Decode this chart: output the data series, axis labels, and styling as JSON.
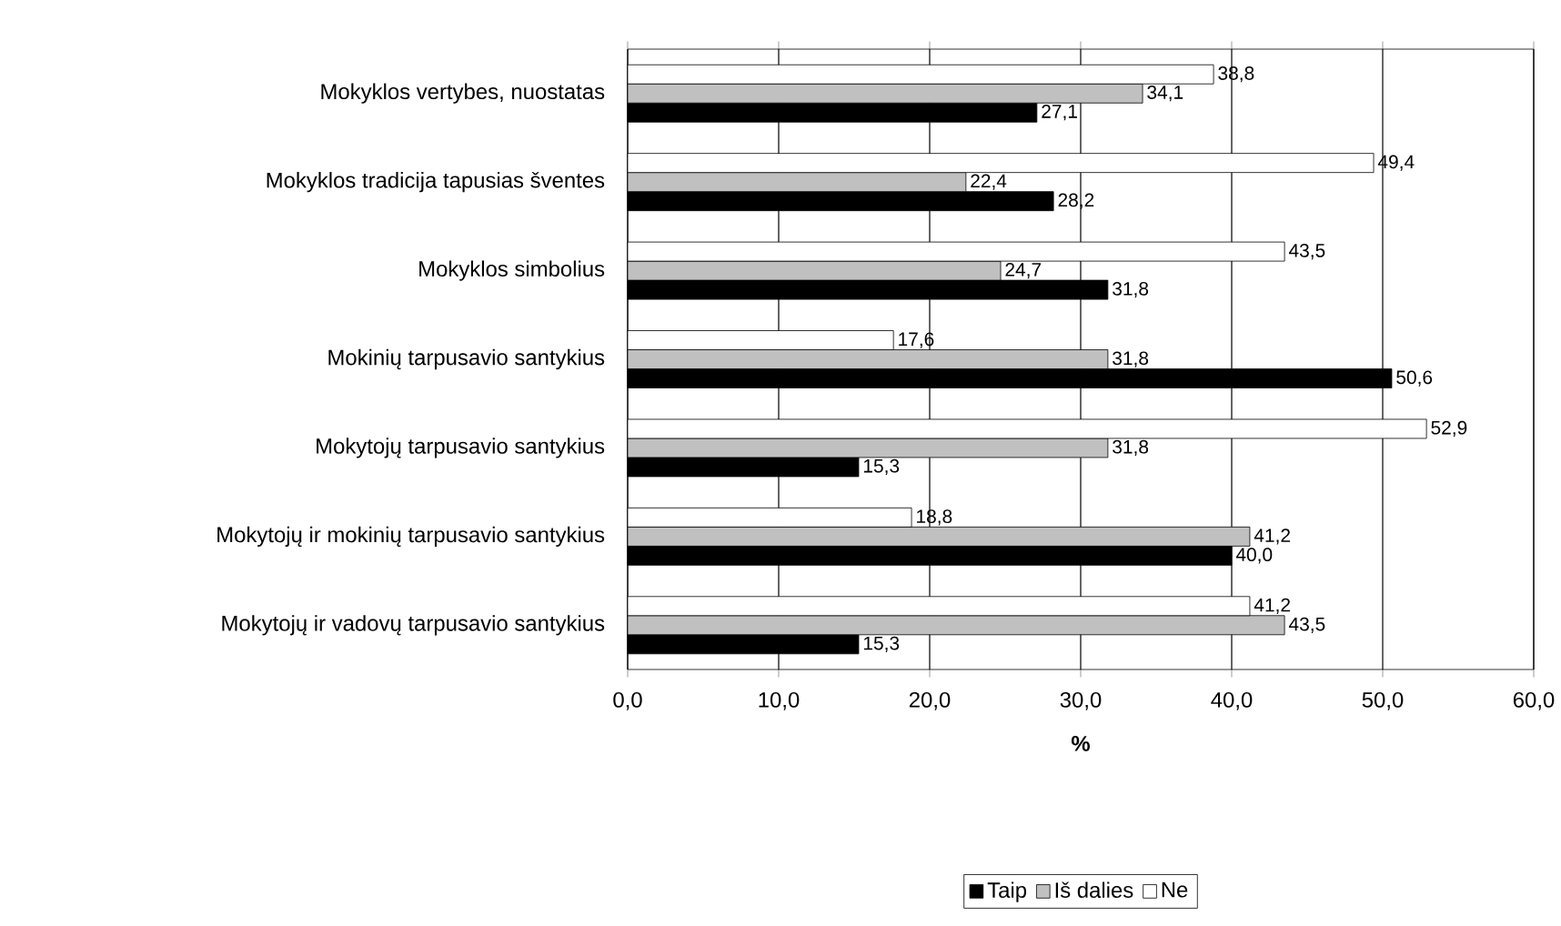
{
  "chart_data": {
    "type": "bar",
    "orientation": "horizontal",
    "xlabel": "%",
    "categories": [
      "Mokyklos vertybes, nuostatas",
      "Mokyklos tradicija tapusias šventes",
      "Mokyklos simbolius",
      "Mokinių tarpusavio santykius",
      "Mokytojų tarpusavio santykius",
      "Mokytojų ir mokinių tarpusavio santykius",
      "Mokytojų ir vadovų tarpusavio santykius"
    ],
    "series": [
      {
        "name": "Taip",
        "color": "#000000",
        "values": [
          27.1,
          28.2,
          31.8,
          50.6,
          15.3,
          40.0,
          15.3
        ],
        "value_labels": [
          "27,1",
          "28,2",
          "31,8",
          "50,6",
          "15,3",
          "40,0",
          "15,3"
        ]
      },
      {
        "name": "Iš dalies",
        "color": "#c0c0c0",
        "values": [
          34.1,
          22.4,
          24.7,
          31.8,
          31.8,
          41.2,
          43.5
        ],
        "value_labels": [
          "34,1",
          "22,4",
          "24,7",
          "31,8",
          "31,8",
          "41,2",
          "43,5"
        ]
      },
      {
        "name": "Ne",
        "color": "#ffffff",
        "values": [
          38.8,
          49.4,
          43.5,
          17.6,
          52.9,
          18.8,
          41.2
        ],
        "value_labels": [
          "38,8",
          "49,4",
          "43,5",
          "17,6",
          "52,9",
          "18,8",
          "41,2"
        ]
      }
    ],
    "xlim": [
      0,
      60
    ],
    "xticks": [
      {
        "value": 0,
        "label": "0,0"
      },
      {
        "value": 10,
        "label": "10,0"
      },
      {
        "value": 20,
        "label": "20,0"
      },
      {
        "value": 30,
        "label": "30,0"
      },
      {
        "value": 40,
        "label": "40,0"
      },
      {
        "value": 50,
        "label": "50,0"
      },
      {
        "value": 60,
        "label": "60,0"
      }
    ],
    "grid": "x",
    "legend": "bottom"
  }
}
